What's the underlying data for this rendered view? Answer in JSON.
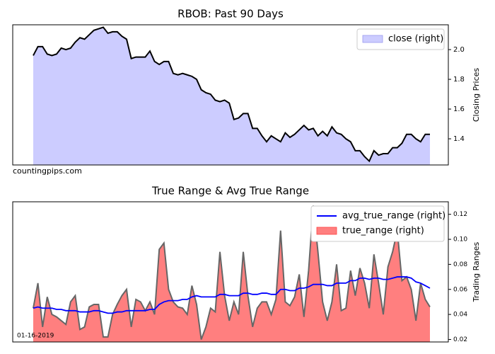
{
  "chart_data": [
    {
      "type": "area",
      "title": "RBOB: Past 90 Days",
      "ylabel": "Closing Prices",
      "annotation": "countingpips.com",
      "ylim": [
        1.224,
        2.167
      ],
      "yticks": [
        1.4,
        1.6,
        1.8,
        {
          "value": 2.0,
          "label": "2.0"
        }
      ],
      "legend": "upper right",
      "series": [
        {
          "name": "close (right)",
          "kind": "area",
          "color": "#ccccff",
          "line_color": "#000000",
          "values": [
            1.96,
            2.02,
            2.02,
            1.97,
            1.96,
            1.97,
            2.01,
            2.0,
            2.01,
            2.05,
            2.08,
            2.07,
            2.1,
            2.13,
            2.14,
            2.15,
            2.11,
            2.12,
            2.12,
            2.09,
            2.07,
            1.94,
            1.95,
            1.95,
            1.95,
            1.99,
            1.92,
            1.9,
            1.92,
            1.92,
            1.84,
            1.83,
            1.84,
            1.83,
            1.82,
            1.8,
            1.73,
            1.71,
            1.7,
            1.66,
            1.65,
            1.66,
            1.64,
            1.53,
            1.54,
            1.57,
            1.57,
            1.47,
            1.47,
            1.42,
            1.38,
            1.42,
            1.4,
            1.38,
            1.44,
            1.41,
            1.43,
            1.46,
            1.49,
            1.46,
            1.47,
            1.42,
            1.45,
            1.42,
            1.48,
            1.44,
            1.43,
            1.4,
            1.38,
            1.32,
            1.32,
            1.28,
            1.25,
            1.32,
            1.29,
            1.3,
            1.3,
            1.34,
            1.34,
            1.37,
            1.43,
            1.43,
            1.4,
            1.38,
            1.43,
            1.43
          ]
        }
      ]
    },
    {
      "type": "area",
      "title": "True Range & Avg True Range",
      "ylabel": "Trading Ranges",
      "annotation": "01-16-2019",
      "ylim": [
        0.018,
        0.13
      ],
      "yticks": [
        0.02,
        0.04,
        0.06,
        0.08,
        {
          "value": 0.1,
          "label": "0.10"
        },
        0.12
      ],
      "legend": "upper right",
      "series": [
        {
          "name": "avg_true_range (right)",
          "kind": "line",
          "color": "#0000ff",
          "values": [
            0.045,
            0.046,
            0.045,
            0.045,
            0.045,
            0.044,
            0.044,
            0.043,
            0.043,
            0.043,
            0.042,
            0.042,
            0.042,
            0.043,
            0.043,
            0.042,
            0.041,
            0.041,
            0.042,
            0.042,
            0.043,
            0.043,
            0.043,
            0.043,
            0.043,
            0.044,
            0.044,
            0.048,
            0.05,
            0.051,
            0.051,
            0.051,
            0.052,
            0.052,
            0.054,
            0.055,
            0.054,
            0.054,
            0.054,
            0.054,
            0.056,
            0.056,
            0.055,
            0.055,
            0.055,
            0.057,
            0.057,
            0.056,
            0.056,
            0.057,
            0.057,
            0.056,
            0.056,
            0.06,
            0.06,
            0.059,
            0.059,
            0.061,
            0.061,
            0.062,
            0.064,
            0.064,
            0.064,
            0.063,
            0.063,
            0.065,
            0.065,
            0.065,
            0.067,
            0.067,
            0.069,
            0.069,
            0.068,
            0.069,
            0.069,
            0.068,
            0.068,
            0.069,
            0.07,
            0.07,
            0.07,
            0.069,
            0.066,
            0.065,
            0.063,
            0.061
          ]
        },
        {
          "name": "true_range (right)",
          "kind": "area",
          "color": "#ff7f7f",
          "line_color": "#666666",
          "values": [
            0.045,
            0.065,
            0.03,
            0.054,
            0.04,
            0.038,
            0.035,
            0.032,
            0.05,
            0.055,
            0.028,
            0.03,
            0.046,
            0.048,
            0.048,
            0.022,
            0.022,
            0.04,
            0.048,
            0.055,
            0.06,
            0.03,
            0.052,
            0.05,
            0.043,
            0.05,
            0.04,
            0.092,
            0.097,
            0.06,
            0.05,
            0.046,
            0.045,
            0.04,
            0.063,
            0.048,
            0.02,
            0.03,
            0.045,
            0.042,
            0.09,
            0.055,
            0.035,
            0.05,
            0.04,
            0.09,
            0.055,
            0.03,
            0.045,
            0.05,
            0.05,
            0.04,
            0.052,
            0.107,
            0.05,
            0.047,
            0.054,
            0.072,
            0.038,
            0.075,
            0.127,
            0.09,
            0.05,
            0.035,
            0.05,
            0.08,
            0.043,
            0.045,
            0.075,
            0.055,
            0.077,
            0.065,
            0.045,
            0.088,
            0.065,
            0.04,
            0.078,
            0.09,
            0.107,
            0.067,
            0.07,
            0.06,
            0.035,
            0.065,
            0.052,
            0.046
          ]
        }
      ]
    }
  ]
}
